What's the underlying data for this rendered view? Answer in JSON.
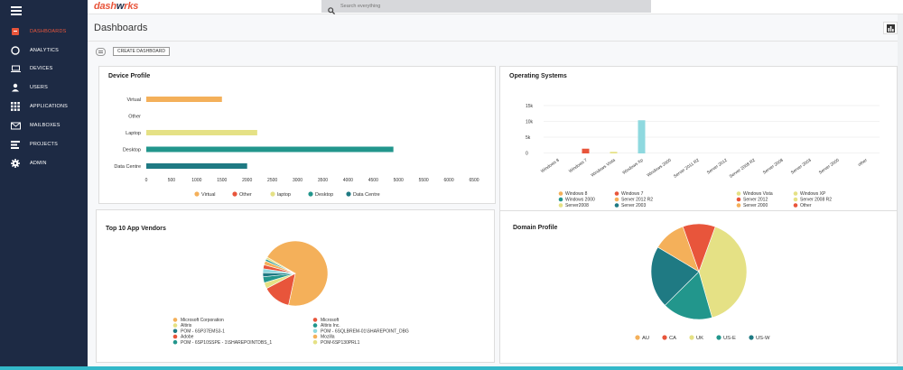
{
  "app": {
    "logo_part1": "dash",
    "logo_part2": "w",
    "logo_part3": "rks"
  },
  "search": {
    "placeholder": "Search everything"
  },
  "sidebar": {
    "items": [
      {
        "label": "DASHBOARDS",
        "icon": "dashboard-icon",
        "active": true
      },
      {
        "label": "ANALYTICS",
        "icon": "analytics-icon"
      },
      {
        "label": "DEVICES",
        "icon": "laptop-icon"
      },
      {
        "label": "USERS",
        "icon": "user-icon"
      },
      {
        "label": "APPLICATIONS",
        "icon": "grid-icon"
      },
      {
        "label": "MAILBOXES",
        "icon": "mail-icon"
      },
      {
        "label": "PROJECTS",
        "icon": "projects-icon"
      },
      {
        "label": "ADMIN",
        "icon": "gear-icon"
      }
    ]
  },
  "page": {
    "title": "Dashboards",
    "create_label": "CREATE DASHBOARD"
  },
  "colors": {
    "accent": "#e8553b",
    "sidebar": "#1d2a44",
    "orange": "#f4b05a",
    "red": "#e8553b",
    "yellow": "#e5e185",
    "teal": "#22968c",
    "darkteal": "#1f7a83",
    "cyan": "#8fd9df"
  },
  "chart_data": [
    {
      "type": "bar",
      "title": "Device Profile",
      "orientation": "horizontal",
      "categories": [
        "Virtual",
        "Other",
        "Laptop",
        "Desktop",
        "Data Centre"
      ],
      "values": [
        1500,
        0,
        2200,
        4900,
        2000
      ],
      "colors": [
        "#f4b05a",
        "#e8553b",
        "#e5e185",
        "#22968c",
        "#1f7a83"
      ],
      "xticks": [
        "0",
        "500",
        "1000",
        "1500",
        "2000",
        "2500",
        "3000",
        "3500",
        "4000",
        "4500",
        "5000",
        "5500",
        "6000",
        "6500"
      ],
      "xlim": [
        0,
        6500
      ],
      "legend": [
        "Virtual",
        "Other",
        "laptop",
        "Desktop",
        "Data Centre"
      ]
    },
    {
      "type": "bar",
      "title": "Operating Systems",
      "categories": [
        "Windows 8",
        "Windows 7",
        "Windows Vista",
        "Windows Xp",
        "Windows 2000",
        "Server 2011 R2",
        "Server 2012",
        "Server 2008 R2",
        "Server 2008",
        "Server 2003",
        "Server 2000",
        "other"
      ],
      "values": [
        0,
        1500,
        500,
        10500,
        0,
        0,
        0,
        0,
        0,
        0,
        0,
        0
      ],
      "colors": [
        "#f4b05a",
        "#e8553b",
        "#e5e185",
        "#8fd9df",
        "#22968c",
        "#f4b05a",
        "#e8553b",
        "#e5e185",
        "#22968c",
        "#1f7a83",
        "#f4b05a",
        "#e8553b"
      ],
      "yticks": [
        "15k",
        "10k",
        "5k",
        "0"
      ],
      "ylim": [
        0,
        15000
      ],
      "legend": [
        {
          "label": "Windows 8",
          "color": "#f4b05a"
        },
        {
          "label": "Windows 7",
          "color": "#e8553b"
        },
        {
          "label": "Windows Vista",
          "color": "#e5e185"
        },
        {
          "label": "Windows XP",
          "color": "#e5e185"
        },
        {
          "label": "Windows 2000",
          "color": "#22968c"
        },
        {
          "label": "Server 2012 R2",
          "color": "#f4b05a"
        },
        {
          "label": "Server 2012",
          "color": "#e8553b"
        },
        {
          "label": "Server 2008 R2",
          "color": "#e5e185"
        },
        {
          "label": "Server2008",
          "color": "#e5e185"
        },
        {
          "label": "Server 2003",
          "color": "#1f7a83"
        },
        {
          "label": "Server 2000",
          "color": "#f4b05a"
        },
        {
          "label": "Other",
          "color": "#e8553b"
        }
      ]
    },
    {
      "type": "pie",
      "title": "Top 10 App Vendors",
      "slices": [
        {
          "label": "Microsoft Corporation",
          "value": 70,
          "color": "#f4b05a"
        },
        {
          "label": "Microsoft",
          "value": 14,
          "color": "#e8553b"
        },
        {
          "label": "Altiris",
          "value": 3,
          "color": "#e5e185"
        },
        {
          "label": "Altiris Inc.",
          "value": 3,
          "color": "#22968c"
        },
        {
          "label": "POM - 6SP37EMS3-1",
          "value": 2,
          "color": "#1f7a83"
        },
        {
          "label": "POM - 6SQLBREM-01\\SHAREPOINT_DBG",
          "value": 2,
          "color": "#8fd9df"
        },
        {
          "label": "Adobe",
          "value": 2,
          "color": "#e8553b"
        },
        {
          "label": "Mozilla",
          "value": 2,
          "color": "#f4b05a"
        },
        {
          "label": "POM - 6SP10SSPE - 1\\SHAREPOINTDBS_1",
          "value": 1,
          "color": "#22968c"
        },
        {
          "label": "POM-6SP130PRL1",
          "value": 1,
          "color": "#e5e185"
        }
      ]
    },
    {
      "type": "pie",
      "title": "Domain Profile",
      "slices": [
        {
          "label": "UK",
          "value": 40,
          "color": "#e5e185"
        },
        {
          "label": "US-E",
          "value": 17,
          "color": "#22968c"
        },
        {
          "label": "US-W",
          "value": 21,
          "color": "#1f7a83"
        },
        {
          "label": "AU",
          "value": 11,
          "color": "#f4b05a"
        },
        {
          "label": "CA",
          "value": 11,
          "color": "#e8553b"
        }
      ],
      "legend": [
        "AU",
        "CA",
        "UK",
        "US-E",
        "US-W"
      ]
    }
  ]
}
